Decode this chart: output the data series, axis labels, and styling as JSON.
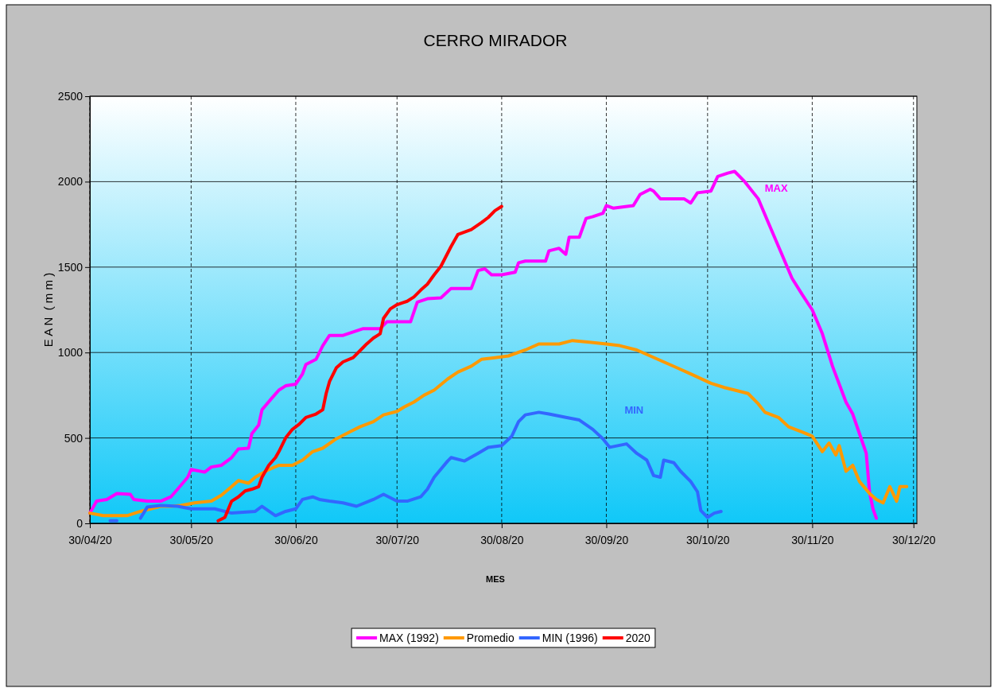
{
  "chart_data": {
    "type": "line",
    "title": "CERRO MIRADOR",
    "xlabel": "MES",
    "ylabel": "E A N  ( m m )",
    "xlim": [
      "2020-04-30",
      "2020-12-31"
    ],
    "xticks": [
      {
        "value": "2020-04-30",
        "label": "30/04/20"
      },
      {
        "value": "2020-05-30",
        "label": "30/05/20"
      },
      {
        "value": "2020-06-30",
        "label": "30/06/20"
      },
      {
        "value": "2020-07-30",
        "label": "30/07/20"
      },
      {
        "value": "2020-08-30",
        "label": "30/08/20"
      },
      {
        "value": "2020-09-30",
        "label": "30/09/20"
      },
      {
        "value": "2020-10-30",
        "label": "30/10/20"
      },
      {
        "value": "2020-11-30",
        "label": "30/11/20"
      },
      {
        "value": "2020-12-30",
        "label": "30/12/20"
      }
    ],
    "ylim": [
      0,
      2500
    ],
    "yticks": [
      0,
      500,
      1000,
      1500,
      2000,
      2500
    ],
    "grid": true,
    "legend": "bottom",
    "marker": "none",
    "line_style": "solid",
    "series": [
      {
        "name": "MAX (1992)",
        "color": "#ff00ff",
        "x": [
          "2020-04-30",
          "2020-05-02",
          "2020-05-05",
          "2020-05-08",
          "2020-05-12",
          "2020-05-13",
          "2020-05-17",
          "2020-05-21",
          "2020-05-24",
          "2020-05-26",
          "2020-05-29",
          "2020-05-30",
          "2020-06-03",
          "2020-06-05",
          "2020-06-08",
          "2020-06-11",
          "2020-06-13",
          "2020-06-16",
          "2020-06-17",
          "2020-06-19",
          "2020-06-20",
          "2020-06-23",
          "2020-06-25",
          "2020-06-27",
          "2020-06-30",
          "2020-07-02",
          "2020-07-03",
          "2020-07-06",
          "2020-07-08",
          "2020-07-10",
          "2020-07-14",
          "2020-07-20",
          "2020-07-25",
          "2020-07-27",
          "2020-08-03",
          "2020-08-05",
          "2020-08-08",
          "2020-08-12",
          "2020-08-15",
          "2020-08-21",
          "2020-08-23",
          "2020-08-25",
          "2020-08-27",
          "2020-08-30",
          "2020-09-03",
          "2020-09-04",
          "2020-09-06",
          "2020-09-12",
          "2020-09-13",
          "2020-09-16",
          "2020-09-18",
          "2020-09-19",
          "2020-09-22",
          "2020-09-24",
          "2020-09-26",
          "2020-09-29",
          "2020-09-30",
          "2020-10-02",
          "2020-10-08",
          "2020-10-10",
          "2020-10-13",
          "2020-10-14",
          "2020-10-16",
          "2020-10-23",
          "2020-10-25",
          "2020-10-27",
          "2020-10-31",
          "2020-11-02",
          "2020-11-05",
          "2020-11-07",
          "2020-11-10",
          "2020-11-14",
          "2020-11-17",
          "2020-11-21",
          "2020-11-24",
          "2020-11-27",
          "2020-11-30",
          "2020-12-03",
          "2020-12-06",
          "2020-12-10",
          "2020-12-12",
          "2020-12-14",
          "2020-12-16",
          "2020-12-17",
          "2020-12-18",
          "2020-12-19"
        ],
        "values": [
          60,
          130,
          140,
          175,
          170,
          140,
          130,
          130,
          155,
          200,
          270,
          315,
          300,
          330,
          340,
          385,
          435,
          440,
          525,
          575,
          665,
          735,
          780,
          805,
          815,
          875,
          930,
          960,
          1040,
          1100,
          1100,
          1140,
          1140,
          1180,
          1180,
          1295,
          1315,
          1320,
          1375,
          1375,
          1480,
          1490,
          1455,
          1455,
          1470,
          1525,
          1535,
          1535,
          1595,
          1610,
          1575,
          1675,
          1675,
          1785,
          1795,
          1815,
          1860,
          1845,
          1860,
          1925,
          1955,
          1945,
          1900,
          1900,
          1875,
          1935,
          1945,
          2030,
          2050,
          2060,
          2000,
          1900,
          1760,
          1575,
          1435,
          1340,
          1250,
          1110,
          920,
          710,
          640,
          525,
          410,
          180,
          85,
          30
        ]
      },
      {
        "name": "Promedio",
        "color": "#ff9900",
        "x": [
          "2020-04-30",
          "2020-05-04",
          "2020-05-11",
          "2020-05-15",
          "2020-05-18",
          "2020-05-21",
          "2020-05-24",
          "2020-05-27",
          "2020-05-31",
          "2020-06-05",
          "2020-06-08",
          "2020-06-11",
          "2020-06-13",
          "2020-06-16",
          "2020-06-18",
          "2020-06-22",
          "2020-06-25",
          "2020-06-29",
          "2020-07-02",
          "2020-07-05",
          "2020-07-08",
          "2020-07-12",
          "2020-07-16",
          "2020-07-19",
          "2020-07-23",
          "2020-07-26",
          "2020-07-30",
          "2020-08-01",
          "2020-08-04",
          "2020-08-07",
          "2020-08-10",
          "2020-08-14",
          "2020-08-17",
          "2020-08-21",
          "2020-08-24",
          "2020-08-28",
          "2020-09-01",
          "2020-09-06",
          "2020-09-10",
          "2020-09-16",
          "2020-09-20",
          "2020-09-25",
          "2020-09-30",
          "2020-10-04",
          "2020-10-09",
          "2020-10-13",
          "2020-10-17",
          "2020-10-21",
          "2020-10-25",
          "2020-10-31",
          "2020-11-04",
          "2020-11-08",
          "2020-11-11",
          "2020-11-14",
          "2020-11-16",
          "2020-11-20",
          "2020-11-23",
          "2020-11-27",
          "2020-11-30",
          "2020-12-01",
          "2020-12-03",
          "2020-12-05",
          "2020-12-07",
          "2020-12-08",
          "2020-12-10",
          "2020-12-12",
          "2020-12-14",
          "2020-12-17",
          "2020-12-19",
          "2020-12-21",
          "2020-12-23",
          "2020-12-25",
          "2020-12-26",
          "2020-12-28"
        ],
        "values": [
          60,
          45,
          45,
          70,
          85,
          100,
          100,
          105,
          120,
          130,
          165,
          215,
          250,
          235,
          270,
          315,
          340,
          340,
          370,
          420,
          440,
          495,
          535,
          565,
          595,
          635,
          655,
          680,
          710,
          750,
          780,
          845,
          885,
          920,
          960,
          970,
          980,
          1015,
          1050,
          1050,
          1070,
          1060,
          1050,
          1040,
          1015,
          980,
          945,
          910,
          875,
          820,
          795,
          775,
          760,
          700,
          650,
          620,
          565,
          535,
          510,
          480,
          420,
          470,
          400,
          455,
          305,
          340,
          245,
          175,
          140,
          120,
          215,
          130,
          215,
          215
        ]
      },
      {
        "name": "MIN (1996)",
        "color": "#3366ff",
        "x": [
          "2020-05-06",
          "2020-05-08",
          "2020-05-12",
          "2020-05-15",
          "2020-05-17",
          "2020-05-21",
          "2020-05-26",
          "2020-05-30",
          "2020-06-06",
          "2020-06-11",
          "2020-06-18",
          "2020-06-20",
          "2020-06-24",
          "2020-06-27",
          "2020-06-30",
          "2020-07-02",
          "2020-07-05",
          "2020-07-07",
          "2020-07-10",
          "2020-07-14",
          "2020-07-18",
          "2020-07-23",
          "2020-07-26",
          "2020-07-30",
          "2020-08-02",
          "2020-08-06",
          "2020-08-08",
          "2020-08-10",
          "2020-08-14",
          "2020-08-15",
          "2020-08-19",
          "2020-08-23",
          "2020-08-26",
          "2020-08-30",
          "2020-09-02",
          "2020-09-04",
          "2020-09-06",
          "2020-09-10",
          "2020-09-13",
          "2020-09-18",
          "2020-09-22",
          "2020-09-26",
          "2020-09-29",
          "2020-10-01",
          "2020-10-06",
          "2020-10-09",
          "2020-10-12",
          "2020-10-14",
          "2020-10-16",
          "2020-10-17",
          "2020-10-20",
          "2020-10-22",
          "2020-10-25",
          "2020-10-27",
          "2020-10-28",
          "2020-10-30",
          "2020-11-01",
          "2020-11-03"
        ],
        "values": [
          15,
          15,
          null,
          30,
          95,
          105,
          100,
          85,
          85,
          60,
          70,
          100,
          45,
          70,
          85,
          140,
          155,
          140,
          130,
          120,
          100,
          140,
          170,
          130,
          130,
          155,
          200,
          270,
          365,
          385,
          365,
          410,
          445,
          455,
          510,
          595,
          635,
          650,
          640,
          620,
          605,
          550,
          495,
          445,
          465,
          410,
          370,
          280,
          270,
          370,
          355,
          305,
          245,
          185,
          75,
          35,
          60,
          70
        ]
      },
      {
        "name": "2020",
        "color": "#ff0000",
        "x": [
          "2020-06-07",
          "2020-06-09",
          "2020-06-11",
          "2020-06-13",
          "2020-06-15",
          "2020-06-17",
          "2020-06-19",
          "2020-06-20",
          "2020-06-22",
          "2020-06-24",
          "2020-06-25",
          "2020-06-27",
          "2020-06-29",
          "2020-07-01",
          "2020-07-03",
          "2020-07-06",
          "2020-07-08",
          "2020-07-09",
          "2020-07-10",
          "2020-07-12",
          "2020-07-14",
          "2020-07-17",
          "2020-07-20",
          "2020-07-21",
          "2020-07-23",
          "2020-07-25",
          "2020-07-26",
          "2020-07-28",
          "2020-07-30",
          "2020-08-02",
          "2020-08-04",
          "2020-08-06",
          "2020-08-08",
          "2020-08-10",
          "2020-08-12",
          "2020-08-15",
          "2020-08-17",
          "2020-08-21",
          "2020-08-24",
          "2020-08-26",
          "2020-08-28",
          "2020-08-30"
        ],
        "values": [
          15,
          35,
          130,
          155,
          190,
          200,
          215,
          270,
          340,
          385,
          420,
          500,
          550,
          580,
          620,
          640,
          665,
          760,
          830,
          910,
          945,
          970,
          1030,
          1050,
          1085,
          1110,
          1200,
          1255,
          1280,
          1300,
          1325,
          1365,
          1400,
          1455,
          1505,
          1620,
          1690,
          1720,
          1760,
          1790,
          1830,
          1855
        ]
      }
    ],
    "annotations": [
      "MAX",
      "MIN"
    ]
  }
}
